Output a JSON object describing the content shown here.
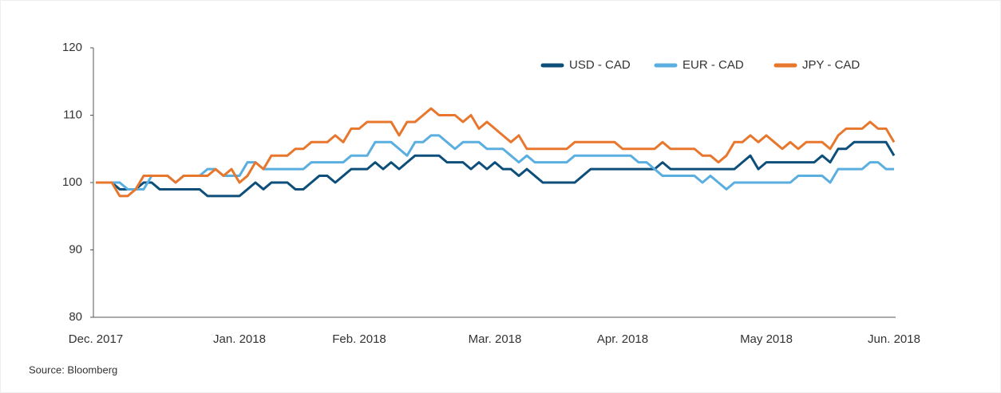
{
  "chart_data": {
    "type": "line",
    "source": "Source: Bloomberg",
    "categories": [
      "Dec. 2017",
      null,
      null,
      null,
      null,
      null,
      null,
      null,
      null,
      null,
      null,
      null,
      null,
      null,
      null,
      null,
      null,
      null,
      "Jan. 2018",
      null,
      null,
      null,
      null,
      null,
      null,
      null,
      null,
      null,
      null,
      null,
      null,
      null,
      null,
      "Feb. 2018",
      null,
      null,
      null,
      null,
      null,
      null,
      null,
      null,
      null,
      null,
      null,
      null,
      null,
      null,
      null,
      null,
      "Mar. 2018",
      null,
      null,
      null,
      null,
      null,
      null,
      null,
      null,
      null,
      null,
      null,
      null,
      null,
      null,
      null,
      "Apr. 2018",
      null,
      null,
      null,
      null,
      null,
      null,
      null,
      null,
      null,
      null,
      null,
      null,
      null,
      null,
      null,
      null,
      null,
      "May 2018",
      null,
      null,
      null,
      null,
      null,
      null,
      null,
      null,
      null,
      null,
      null,
      null,
      null,
      null,
      null,
      "Jun. 2018"
    ],
    "series": [
      {
        "name": "USD - CAD",
        "color": "#0d4f7a",
        "values": [
          100,
          100,
          100,
          99,
          99,
          99,
          100,
          100,
          99,
          99,
          99,
          99,
          99,
          99,
          98,
          98,
          98,
          98,
          98,
          99,
          100,
          99,
          100,
          100,
          100,
          99,
          99,
          100,
          101,
          101,
          100,
          101,
          102,
          102,
          102,
          103,
          102,
          103,
          102,
          103,
          104,
          104,
          104,
          104,
          103,
          103,
          103,
          102,
          103,
          102,
          103,
          102,
          102,
          101,
          102,
          101,
          100,
          100,
          100,
          100,
          100,
          101,
          102,
          102,
          102,
          102,
          102,
          102,
          102,
          102,
          102,
          103,
          102,
          102,
          102,
          102,
          102,
          102,
          102,
          102,
          102,
          103,
          104,
          102,
          103,
          103,
          103,
          103,
          103,
          103,
          103,
          104,
          103,
          105,
          105,
          106,
          106,
          106,
          106,
          106,
          104
        ]
      },
      {
        "name": "EUR - CAD",
        "color": "#5aaee0",
        "values": [
          100,
          100,
          100,
          100,
          99,
          99,
          99,
          101,
          101,
          101,
          100,
          101,
          101,
          101,
          102,
          102,
          101,
          101,
          101,
          103,
          103,
          102,
          102,
          102,
          102,
          102,
          102,
          103,
          103,
          103,
          103,
          103,
          104,
          104,
          104,
          106,
          106,
          106,
          105,
          104,
          106,
          106,
          107,
          107,
          106,
          105,
          106,
          106,
          106,
          105,
          105,
          105,
          104,
          103,
          104,
          103,
          103,
          103,
          103,
          103,
          104,
          104,
          104,
          104,
          104,
          104,
          104,
          104,
          103,
          103,
          102,
          101,
          101,
          101,
          101,
          101,
          100,
          101,
          100,
          99,
          100,
          100,
          100,
          100,
          100,
          100,
          100,
          100,
          101,
          101,
          101,
          101,
          100,
          102,
          102,
          102,
          102,
          103,
          103,
          102,
          102
        ]
      },
      {
        "name": "JPY - CAD",
        "color": "#e8772e",
        "values": [
          100,
          100,
          100,
          98,
          98,
          99,
          101,
          101,
          101,
          101,
          100,
          101,
          101,
          101,
          101,
          102,
          101,
          102,
          100,
          101,
          103,
          102,
          104,
          104,
          104,
          105,
          105,
          106,
          106,
          106,
          107,
          106,
          108,
          108,
          109,
          109,
          109,
          109,
          107,
          109,
          109,
          110,
          111,
          110,
          110,
          110,
          109,
          110,
          108,
          109,
          108,
          107,
          106,
          107,
          105,
          105,
          105,
          105,
          105,
          105,
          106,
          106,
          106,
          106,
          106,
          106,
          105,
          105,
          105,
          105,
          105,
          106,
          105,
          105,
          105,
          105,
          104,
          104,
          103,
          104,
          106,
          106,
          107,
          106,
          107,
          106,
          105,
          106,
          105,
          106,
          106,
          106,
          105,
          107,
          108,
          108,
          108,
          109,
          108,
          108,
          106
        ]
      }
    ],
    "ylim": [
      80,
      120
    ],
    "yticks": [
      80,
      90,
      100,
      110,
      120
    ],
    "legend": "top-right",
    "grid": false
  }
}
